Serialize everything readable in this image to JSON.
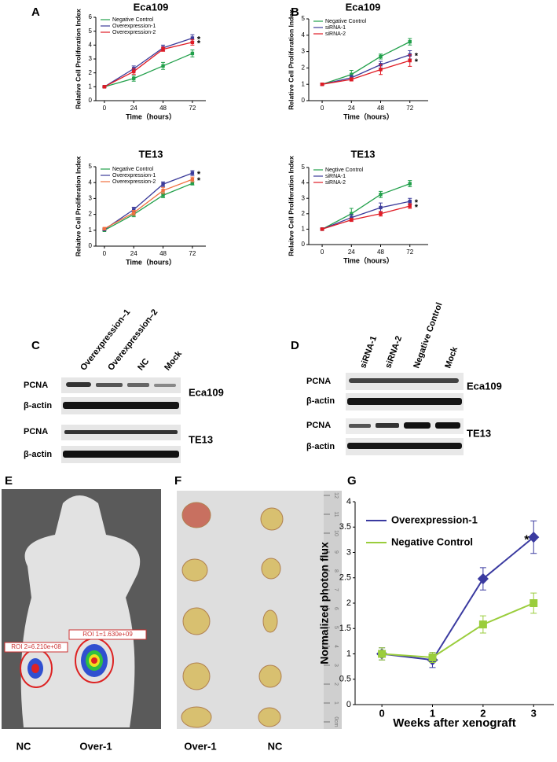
{
  "chart_data": [
    {
      "type": "line",
      "title": "Eca109",
      "xlabel": "Time（hours）",
      "ylabel": "Relative Cell Proliferation Index",
      "x": [
        0,
        24,
        48,
        72
      ],
      "xlim": [
        -7,
        83
      ],
      "xticks": [
        0,
        24,
        48,
        72
      ],
      "ylim": [
        0,
        6
      ],
      "yticks": [
        0,
        1,
        2,
        3,
        4,
        5,
        6
      ],
      "series": [
        {
          "name": "Negative Control",
          "color": "#22a04b",
          "values": [
            1,
            1.6,
            2.5,
            3.4
          ],
          "errors": [
            0.05,
            0.2,
            0.25,
            0.25
          ]
        },
        {
          "name": "Overexpression-1",
          "color": "#3b3b9a",
          "values": [
            1,
            2.3,
            3.8,
            4.5
          ],
          "errors": [
            0.05,
            0.2,
            0.2,
            0.25
          ]
        },
        {
          "name": "Overexpression-2",
          "color": "#e01b24",
          "values": [
            1,
            2.1,
            3.7,
            4.2
          ],
          "errors": [
            0.05,
            0.2,
            0.15,
            0.2
          ]
        }
      ],
      "annotations": [
        "*",
        "*"
      ]
    },
    {
      "type": "line",
      "title": "Eca109",
      "xlabel": "Time（hours）",
      "ylabel": "Relative Cell Proliferation Index",
      "x": [
        0,
        24,
        48,
        72
      ],
      "xlim": [
        -11,
        87
      ],
      "xticks": [
        0,
        24,
        48,
        72
      ],
      "ylim": [
        0,
        5
      ],
      "yticks": [
        0,
        1,
        2,
        3,
        4,
        5
      ],
      "series": [
        {
          "name": "Negative Control",
          "color": "#22a04b",
          "values": [
            1,
            1.6,
            2.7,
            3.6
          ],
          "errors": [
            0.05,
            0.25,
            0.15,
            0.2
          ]
        },
        {
          "name": "siRNA-1",
          "color": "#3b3b9a",
          "values": [
            1,
            1.4,
            2.2,
            2.8
          ],
          "errors": [
            0.05,
            0.15,
            0.2,
            0.25
          ]
        },
        {
          "name": "siRNA-2",
          "color": "#e01b24",
          "values": [
            1,
            1.3,
            1.9,
            2.45
          ],
          "errors": [
            0.05,
            0.1,
            0.3,
            0.35
          ]
        }
      ],
      "annotations": [
        "*",
        "*"
      ]
    },
    {
      "type": "line",
      "title": "TE13",
      "xlabel": "Time（hours）",
      "ylabel": "Relaitve Cell Proliferation Index",
      "x": [
        0,
        24,
        48,
        72
      ],
      "xlim": [
        -7,
        83
      ],
      "xticks": [
        0,
        24,
        48,
        72
      ],
      "ylim": [
        0,
        5
      ],
      "yticks": [
        0,
        1,
        2,
        3,
        4,
        5
      ],
      "series": [
        {
          "name": "Negative Control",
          "color": "#22a04b",
          "values": [
            1,
            2.0,
            3.2,
            3.95
          ],
          "errors": [
            0.05,
            0.15,
            0.15,
            0.1
          ]
        },
        {
          "name": "Overexpression-1",
          "color": "#3b3b9a",
          "values": [
            1.05,
            2.3,
            3.9,
            4.6
          ],
          "errors": [
            0.05,
            0.15,
            0.15,
            0.15
          ]
        },
        {
          "name": "Overexpression-2",
          "color": "#f07040",
          "values": [
            1.1,
            2.1,
            3.5,
            4.2
          ],
          "errors": [
            0.05,
            0.15,
            0.2,
            0.15
          ]
        }
      ],
      "annotations": [
        "*",
        "*"
      ]
    },
    {
      "type": "line",
      "title": "TE13",
      "xlabel": "Time（hours）",
      "ylabel": "Relaitve Cell Proliferation Index",
      "x": [
        0,
        24,
        48,
        72
      ],
      "xlim": [
        -11,
        87
      ],
      "xticks": [
        0,
        24,
        48,
        72
      ],
      "ylim": [
        0,
        5
      ],
      "yticks": [
        0,
        1,
        2,
        3,
        4,
        5
      ],
      "series": [
        {
          "name": "Negtive Control",
          "color": "#22a04b",
          "values": [
            1,
            2.0,
            3.25,
            3.95
          ],
          "errors": [
            0.05,
            0.35,
            0.2,
            0.2
          ]
        },
        {
          "name": "siRNA-1",
          "color": "#3b3b9a",
          "values": [
            1,
            1.75,
            2.4,
            2.8
          ],
          "errors": [
            0.05,
            0.2,
            0.3,
            0.2
          ]
        },
        {
          "name": "siRNA-2",
          "color": "#e01b24",
          "values": [
            1,
            1.6,
            2.0,
            2.5
          ],
          "errors": [
            0.05,
            0.1,
            0.15,
            0.15
          ]
        }
      ],
      "annotations": [
        "*",
        "*"
      ]
    },
    {
      "type": "line",
      "xlabel": "Weeks after xenograft",
      "ylabel": "Normalized photon flux",
      "x": [
        0,
        1,
        2,
        3
      ],
      "xlim": [
        -0.53,
        3.4
      ],
      "xticks": [
        0,
        1,
        2,
        3
      ],
      "ylim": [
        0,
        4
      ],
      "yticks": [
        0,
        0.5,
        1,
        1.5,
        2,
        2.5,
        3,
        3.5,
        4
      ],
      "series": [
        {
          "name": "Overexpression-1",
          "color": "#3a3aa0",
          "values": [
            1,
            0.88,
            2.48,
            3.3
          ],
          "errors": [
            0.12,
            0.15,
            0.22,
            0.32
          ]
        },
        {
          "name": "Negative Control",
          "color": "#9acd3c",
          "values": [
            1,
            0.93,
            1.58,
            2.0
          ],
          "errors": [
            0.12,
            0.1,
            0.17,
            0.2
          ]
        }
      ],
      "annotations": [
        "*"
      ]
    }
  ],
  "panels": [
    "A",
    "B",
    "C",
    "D",
    "E",
    "F",
    "G"
  ],
  "blot_c": {
    "lanes": [
      "Overexpression–1",
      "Overexpression–2",
      "NC",
      "Mock"
    ],
    "rows": [
      "PCNA",
      "β-actin",
      "PCNA",
      "β-actin"
    ],
    "cells": [
      "Eca109",
      "TE13"
    ]
  },
  "blot_d": {
    "lanes": [
      "siRNA-1",
      "siRNA-2",
      "Negative Control",
      "Mock"
    ],
    "rows": [
      "PCNA",
      "β-actin",
      "PCNA",
      "β-actin"
    ],
    "cells": [
      "Eca109",
      "TE13"
    ]
  },
  "image_e": {
    "rois": [
      "ROI 1=1.630e+09",
      "ROI 2=6.210e+08"
    ],
    "labels": [
      "NC",
      "Over-1"
    ]
  },
  "image_f": {
    "labels": [
      "Over-1",
      "NC"
    ],
    "ruler": [
      "0cm",
      "1",
      "2",
      "3",
      "4",
      "5",
      "6",
      "7",
      "8",
      "9",
      "10",
      "11",
      "12"
    ]
  }
}
